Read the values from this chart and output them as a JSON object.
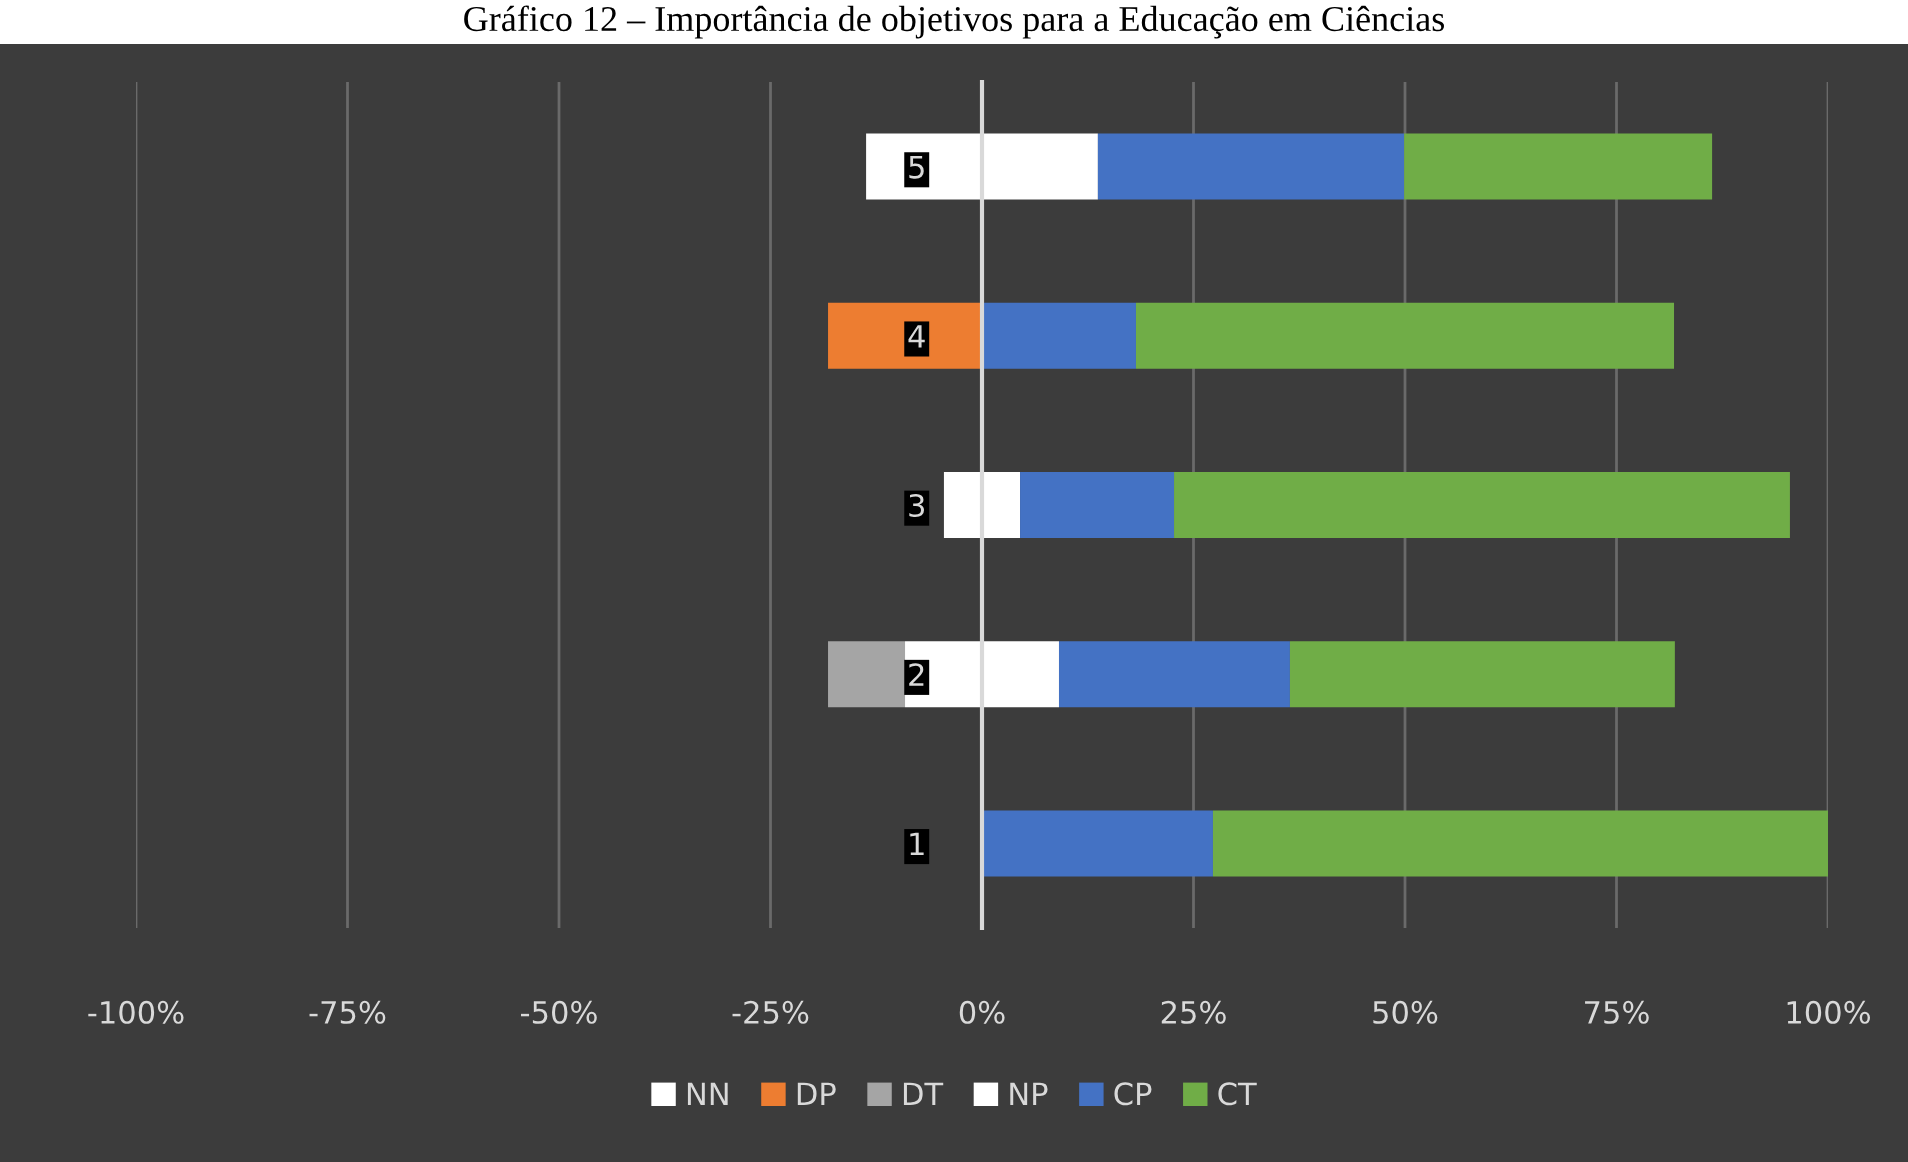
{
  "chart_data": {
    "type": "bar",
    "orientation": "horizontal",
    "stacked": true,
    "title": "Gráfico 12 – Importância de objetivos para a Educação em Ciências",
    "categories": [
      "5",
      "4",
      "3",
      "2",
      "1"
    ],
    "series": [
      {
        "name": "NN",
        "color": "#ffffff",
        "values": [
          -13.7,
          null,
          -4.5,
          -9.1,
          null
        ]
      },
      {
        "name": "DP",
        "color": "#ed7d31",
        "values": [
          null,
          -18.2,
          null,
          null,
          null
        ]
      },
      {
        "name": "DT",
        "color": "#a5a5a5",
        "values": [
          null,
          null,
          null,
          -9.1,
          null
        ]
      },
      {
        "name": "NP",
        "color": "#ffffff",
        "values": [
          13.7,
          null,
          4.5,
          9.1,
          null
        ]
      },
      {
        "name": "CP",
        "color": "#4472c4",
        "values": [
          36.2,
          18.2,
          18.2,
          27.3,
          27.3
        ]
      },
      {
        "name": "CT",
        "color": "#70ad47",
        "values": [
          36.4,
          63.6,
          72.8,
          45.5,
          72.7
        ]
      }
    ],
    "xlim": [
      -100,
      100
    ],
    "xticks": [
      {
        "value": -100,
        "label": "-100%"
      },
      {
        "value": -75,
        "label": "-75%"
      },
      {
        "value": -50,
        "label": "-50%"
      },
      {
        "value": -25,
        "label": "-25%"
      },
      {
        "value": 0,
        "label": "0%"
      },
      {
        "value": 25,
        "label": "25%"
      },
      {
        "value": 50,
        "label": "50%"
      },
      {
        "value": 75,
        "label": "75%"
      },
      {
        "value": 100,
        "label": "100%"
      }
    ],
    "grid": "x",
    "legend": "bottom"
  }
}
